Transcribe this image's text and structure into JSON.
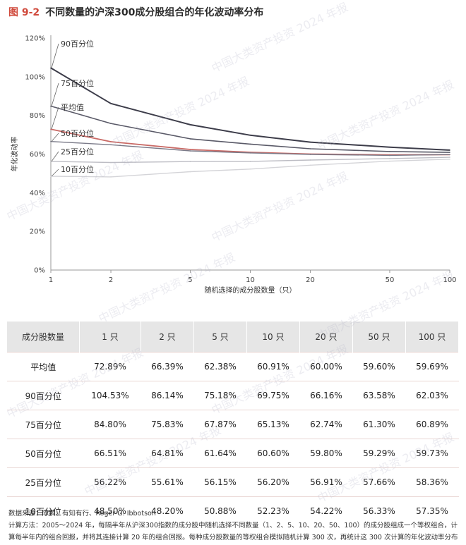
{
  "figure": {
    "number": "图 9-2",
    "title": "不同数量的沪深300成分股组合的年化波动率分布"
  },
  "chart_data": {
    "type": "line",
    "title": "不同数量的沪深300成分股组合的年化波动率分布",
    "xlabel": "随机选择的成分股数量（只）",
    "ylabel": "年化波动率",
    "x": [
      1,
      2,
      5,
      10,
      20,
      50,
      100
    ],
    "x_tick_labels": [
      "1",
      "2",
      "5",
      "10",
      "20",
      "50",
      "100"
    ],
    "x_scale": "log",
    "ylim": [
      0,
      120
    ],
    "y_ticks": [
      0,
      20,
      40,
      60,
      80,
      100,
      120
    ],
    "y_tick_labels": [
      "0%",
      "20%",
      "40%",
      "60%",
      "80%",
      "100%",
      "120%"
    ],
    "grid": false,
    "series": [
      {
        "name": "90百分位",
        "values": [
          104.53,
          86.14,
          75.18,
          69.75,
          66.16,
          63.58,
          62.03
        ],
        "color": "#3d3d4a",
        "width": 2
      },
      {
        "name": "75百分位",
        "values": [
          84.8,
          75.83,
          67.87,
          65.13,
          62.74,
          61.3,
          60.89
        ],
        "color": "#5a5a68",
        "width": 1.6
      },
      {
        "name": "平均值",
        "values": [
          72.89,
          66.39,
          62.38,
          60.91,
          60.0,
          59.6,
          59.69
        ],
        "color": "#c96a66",
        "width": 1.8
      },
      {
        "name": "50百分位",
        "values": [
          66.51,
          64.81,
          61.64,
          60.6,
          59.8,
          59.29,
          59.73
        ],
        "color": "#7a7a88",
        "width": 1.4
      },
      {
        "name": "25百分位",
        "values": [
          56.22,
          55.61,
          56.15,
          56.2,
          56.91,
          57.66,
          58.36
        ],
        "color": "#bdbdc4",
        "width": 1.4
      },
      {
        "name": "10百分位",
        "values": [
          48.5,
          48.2,
          50.88,
          52.23,
          54.22,
          56.33,
          57.35
        ],
        "color": "#d4d4d8",
        "width": 1.4
      }
    ]
  },
  "table": {
    "headers": [
      "成分股数量",
      "1 只",
      "2 只",
      "5 只",
      "10 只",
      "20 只",
      "50 只",
      "100 只"
    ],
    "rows": [
      [
        "平均值",
        "72.89%",
        "66.39%",
        "62.38%",
        "60.91%",
        "60.00%",
        "59.60%",
        "59.69%"
      ],
      [
        "90百分位",
        "104.53%",
        "86.14%",
        "75.18%",
        "69.75%",
        "66.16%",
        "63.58%",
        "62.03%"
      ],
      [
        "75百分位",
        "84.80%",
        "75.83%",
        "67.87%",
        "65.13%",
        "62.74%",
        "61.30%",
        "60.89%"
      ],
      [
        "50百分位",
        "66.51%",
        "64.81%",
        "61.64%",
        "60.60%",
        "59.80%",
        "59.29%",
        "59.73%"
      ],
      [
        "25百分位",
        "56.22%",
        "55.61%",
        "56.15%",
        "56.20%",
        "56.91%",
        "57.66%",
        "58.36%"
      ],
      [
        "10百分位",
        "48.50%",
        "48.20%",
        "50.88%",
        "52.23%",
        "54.22%",
        "56.33%",
        "57.35%"
      ]
    ]
  },
  "notes": {
    "source": "数据来源：陈鹏、有知有行、Roger G. Ibbotson",
    "method": "计算方法：2005～2024 年，每隔半年从沪深300指数的成分股中随机选择不同数量（1、2、5、10、20、50、100）的成分股组成一个等权组合，计算每半年内的组合回报，并将其连接计算 20 年的组合回报。每种成分股数量的等权组合模拟随机计算 300 次，再统计这 300 次计算的年化波动率分布"
  },
  "watermark_text": "中国大类资产投资 2024 年报"
}
